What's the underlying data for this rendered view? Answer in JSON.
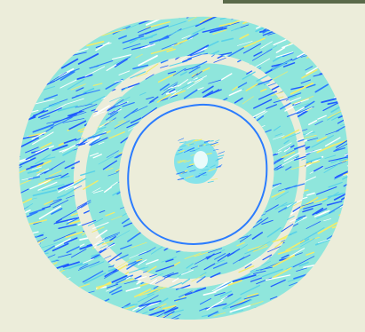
{
  "view": {
    "background": "#ecedda",
    "corner_bar_color": "#5a6a4a"
  },
  "palette": {
    "base_fill": "#8fe6dc",
    "streak_primary": "#1f5bff",
    "streak_secondary": "#2b7cff",
    "streak_light": "#5ad2e8",
    "speck_yellow": "#f2ec6a",
    "speck_white": "#ffffff",
    "core_fill": "#86e3ea",
    "core_glow": "#e9fbfb"
  },
  "detector": {
    "ring_names": [
      "outer-ring",
      "middle-ring",
      "inner-ring",
      "core"
    ]
  }
}
